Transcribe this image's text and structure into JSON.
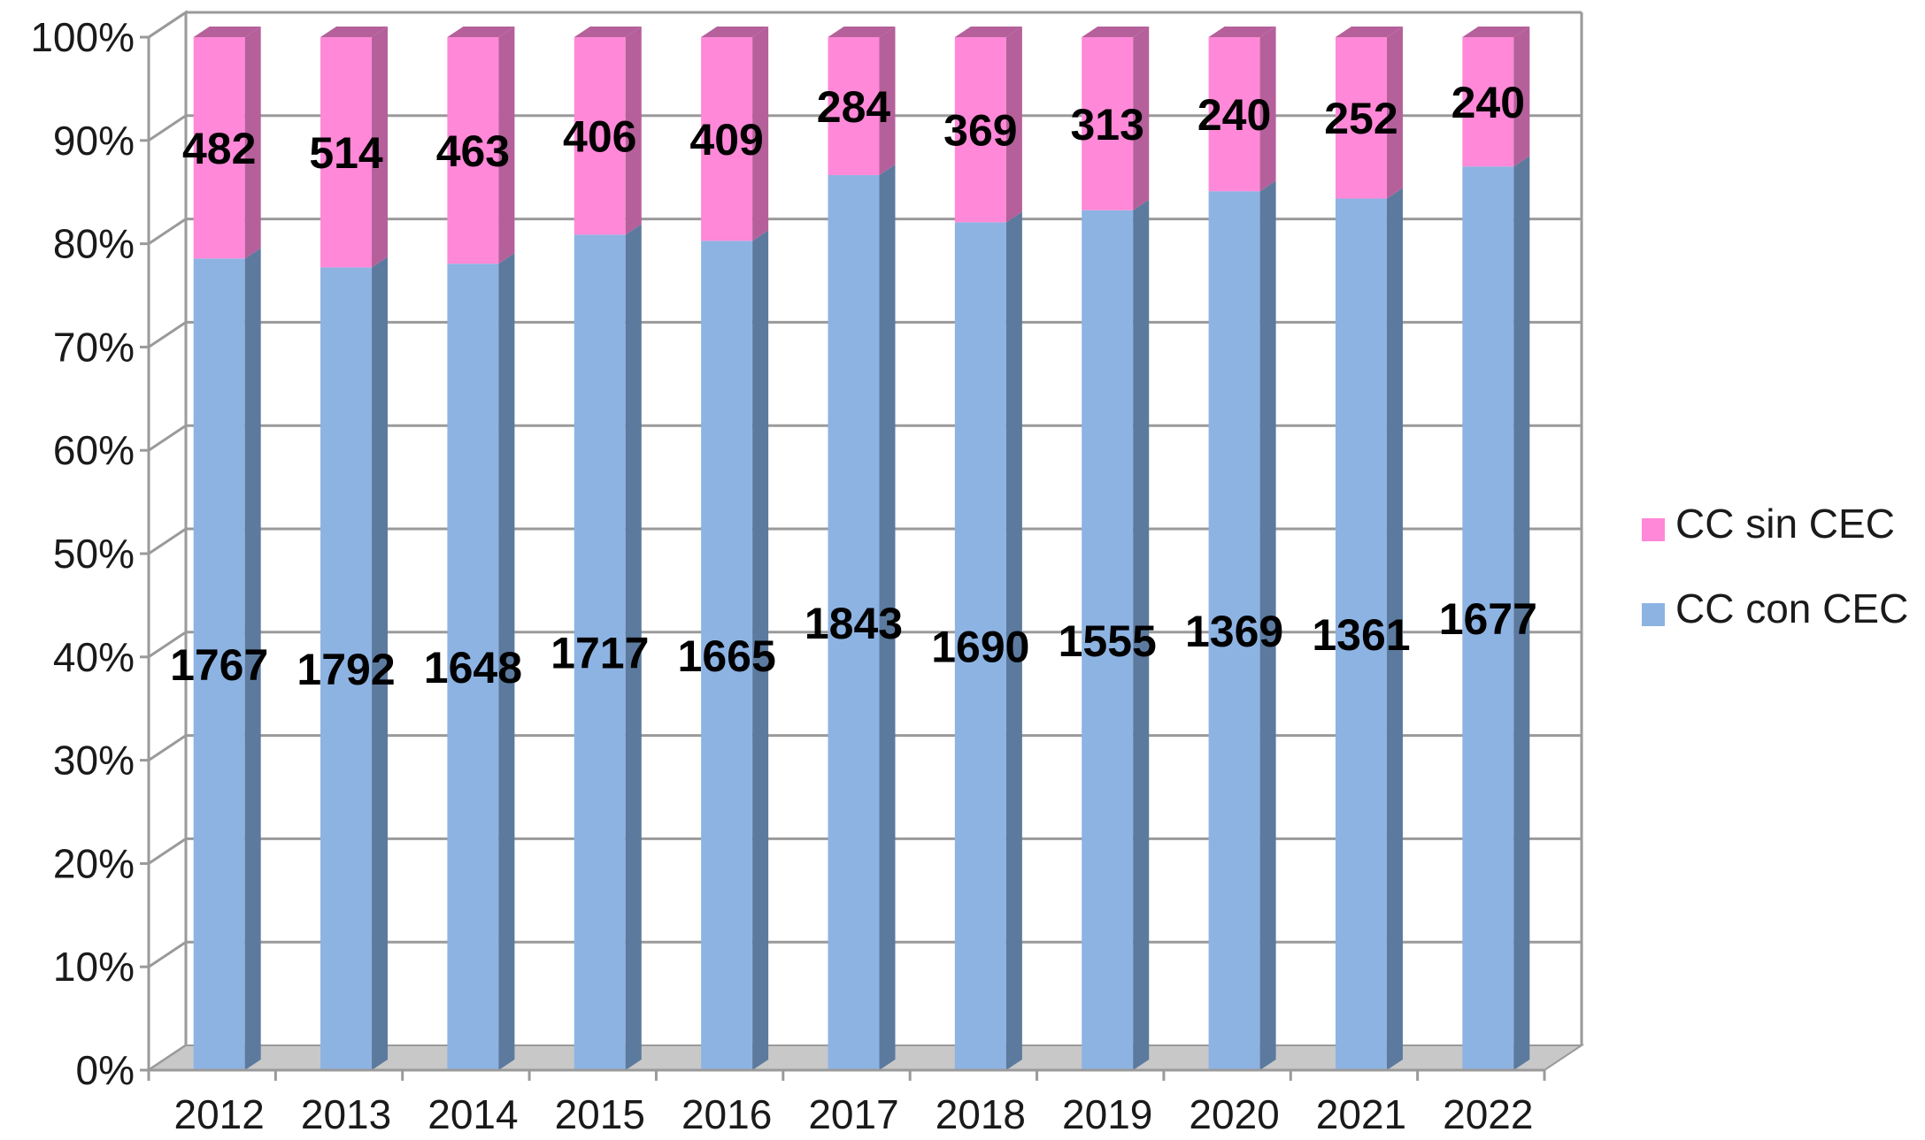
{
  "chart_data": {
    "type": "bar",
    "stacked": true,
    "normalized": true,
    "three_d": true,
    "categories": [
      "2012",
      "2013",
      "2014",
      "2015",
      "2016",
      "2017",
      "2018",
      "2019",
      "2020",
      "2021",
      "2022"
    ],
    "series": [
      {
        "name": "CC con CEC",
        "values": [
          1767,
          1792,
          1648,
          1717,
          1665,
          1843,
          1690,
          1555,
          1369,
          1361,
          1677
        ],
        "color": "#8db3e2",
        "side_color": "#5c7a9e"
      },
      {
        "name": "CC sin CEC",
        "values": [
          482,
          514,
          463,
          406,
          409,
          284,
          369,
          313,
          240,
          252,
          240
        ],
        "color": "#ff88d8",
        "side_color": "#b5609a"
      }
    ],
    "y_tick_labels": [
      "0%",
      "10%",
      "20%",
      "30%",
      "40%",
      "50%",
      "60%",
      "70%",
      "80%",
      "90%",
      "100%"
    ],
    "ylim": [
      0,
      100
    ],
    "grid": true,
    "legend_position": "right",
    "title": "",
    "xlabel": "",
    "ylabel": ""
  }
}
